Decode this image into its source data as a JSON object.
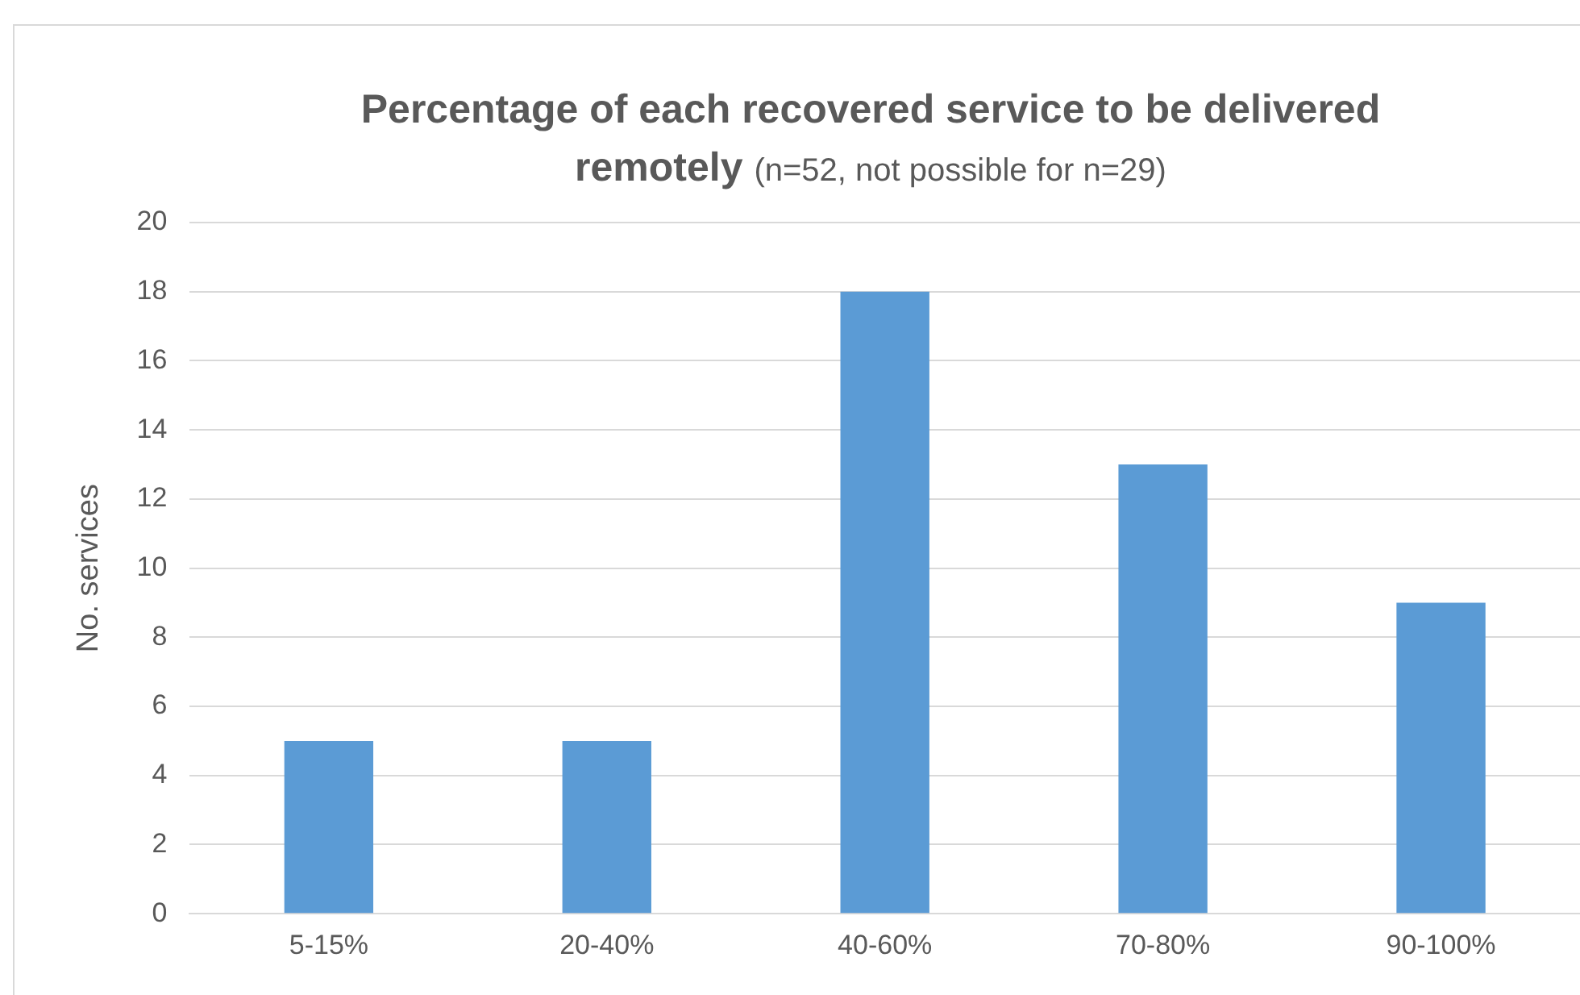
{
  "chart_data": {
    "type": "bar",
    "title": "Percentage of each recovered service to be delivered remotely",
    "subtitle": "(n=52, not possible for n=29)",
    "ylabel": "No. services",
    "categories": [
      "5-15%",
      "20-40%",
      "40-60%",
      "70-80%",
      "90-100%"
    ],
    "values": [
      5,
      5,
      18,
      13,
      9
    ],
    "color": "#5b9bd5",
    "ylim": [
      0,
      20
    ],
    "yticks": [
      0,
      2,
      4,
      6,
      8,
      10,
      12,
      14,
      16,
      18,
      20
    ],
    "grid": "y",
    "legend": false
  }
}
